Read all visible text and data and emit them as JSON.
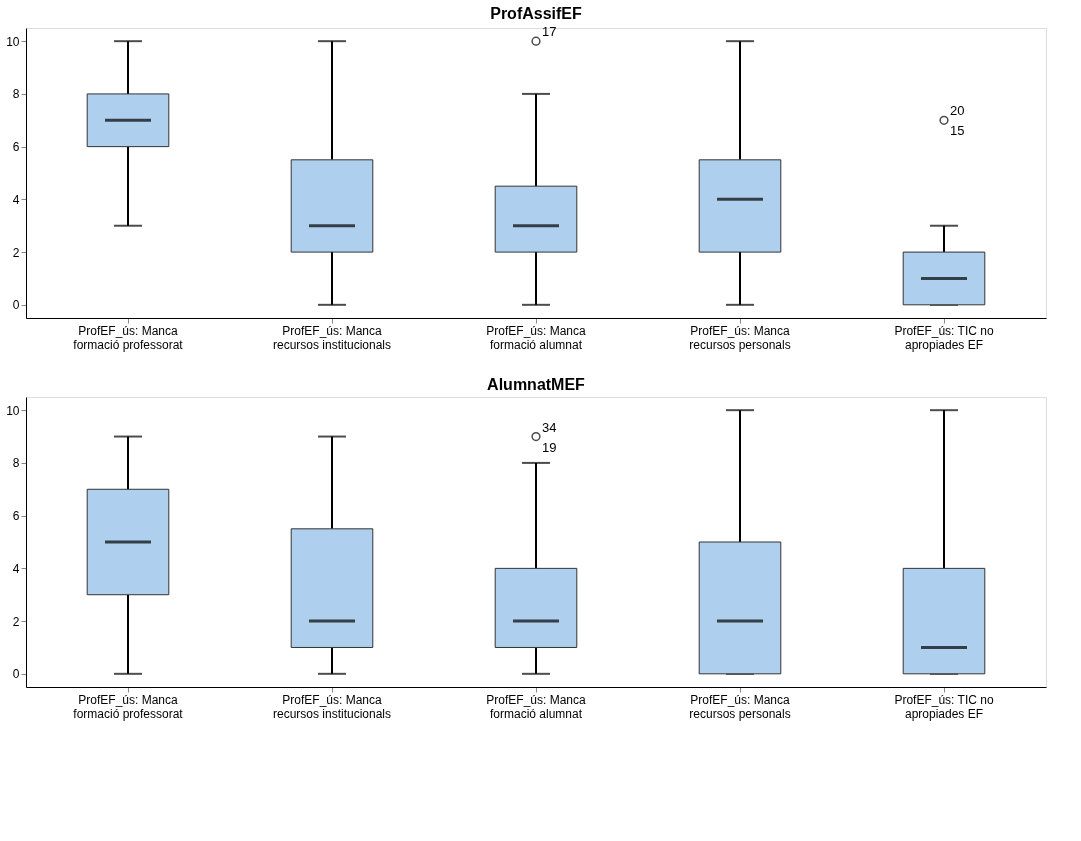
{
  "chart_data": [
    {
      "type": "box",
      "title": "ProfAssifEF",
      "categories": [
        "ProfEF_ús: Manca\nformació professorat",
        "ProfEF_ús: Manca\nrecursos institucionals",
        "ProfEF_ús: Manca\nformació alumnat",
        "ProfEF_ús: Manca\nrecursos personals",
        "ProfEF_ús: TIC no\napropiades EF"
      ],
      "boxes": [
        {
          "low": 3,
          "q1": 6,
          "median": 7,
          "q3": 8,
          "high": 10
        },
        {
          "low": 0,
          "q1": 2,
          "median": 3,
          "q3": 5.5,
          "high": 10
        },
        {
          "low": 0,
          "q1": 2,
          "median": 3,
          "q3": 4.5,
          "high": 8,
          "outliers": [
            10
          ]
        },
        {
          "low": 0,
          "q1": 2,
          "median": 4,
          "q3": 5.5,
          "high": 10
        },
        {
          "low": 0,
          "q1": 0,
          "median": 1,
          "q3": 2,
          "high": 3,
          "outliers": [
            7
          ]
        }
      ],
      "color": "#aed0ee",
      "ylim": [
        -0.5,
        10.5
      ],
      "yticks": [
        0,
        2,
        4,
        6,
        8,
        10
      ],
      "grid": false,
      "annotations": [
        "17",
        "20",
        "15"
      ]
    },
    {
      "type": "box",
      "title": "AlumnatMEF",
      "categories": [
        "ProfEF_ús: Manca\nformació professorat",
        "ProfEF_ús: Manca\nrecursos institucionals",
        "ProfEF_ús: Manca\nformació alumnat",
        "ProfEF_ús: Manca\nrecursos personals",
        "ProfEF_ús: TIC no\napropiades EF"
      ],
      "boxes": [
        {
          "low": 0,
          "q1": 3,
          "median": 5,
          "q3": 7,
          "high": 9
        },
        {
          "low": 0,
          "q1": 1,
          "median": 2,
          "q3": 5.5,
          "high": 9
        },
        {
          "low": 0,
          "q1": 1,
          "median": 2,
          "q3": 4,
          "high": 8,
          "outliers": [
            9
          ]
        },
        {
          "low": 0,
          "q1": 0,
          "median": 2,
          "q3": 5,
          "high": 10
        },
        {
          "low": 0,
          "q1": 0,
          "median": 1,
          "q3": 4,
          "high": 10
        }
      ],
      "color": "#aed0ee",
      "ylim": [
        -0.5,
        10.5
      ],
      "yticks": [
        0,
        2,
        4,
        6,
        8,
        10
      ],
      "grid": false,
      "annotations": [
        "34",
        "19"
      ]
    }
  ]
}
